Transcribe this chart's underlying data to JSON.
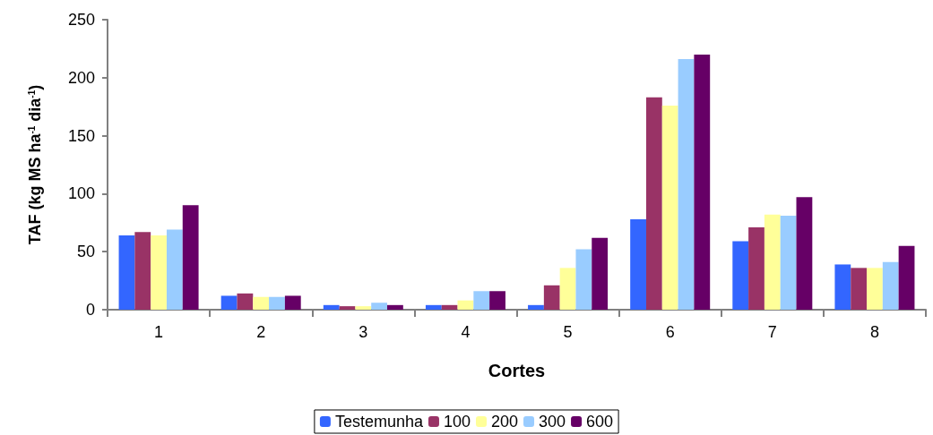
{
  "chart_data": {
    "type": "bar",
    "xlabel": "Cortes",
    "ylabel": "TAF (kg MS ha$^{-1}$ dia$^{-1}$)",
    "categories": [
      "1",
      "2",
      "3",
      "4",
      "5",
      "6",
      "7",
      "8"
    ],
    "series": [
      {
        "name": "Testemunha",
        "color": "#3366ff",
        "values": [
          64,
          12,
          4,
          4,
          4,
          78,
          59,
          39
        ]
      },
      {
        "name": "100",
        "color": "#993366",
        "values": [
          67,
          14,
          3,
          4,
          21,
          183,
          71,
          36
        ]
      },
      {
        "name": "200",
        "color": "#ffff99",
        "values": [
          64,
          11,
          3,
          8,
          36,
          176,
          82,
          36
        ]
      },
      {
        "name": "300",
        "color": "#99ccff",
        "values": [
          69,
          11,
          6,
          16,
          52,
          216,
          81,
          41
        ]
      },
      {
        "name": "600",
        "color": "#660066",
        "values": [
          90,
          12,
          4,
          16,
          62,
          220,
          97,
          55
        ]
      }
    ],
    "ylim": [
      0,
      250
    ],
    "yticks": [
      0,
      50,
      100,
      150,
      200,
      250
    ],
    "grid": false,
    "legend": "bottom"
  }
}
